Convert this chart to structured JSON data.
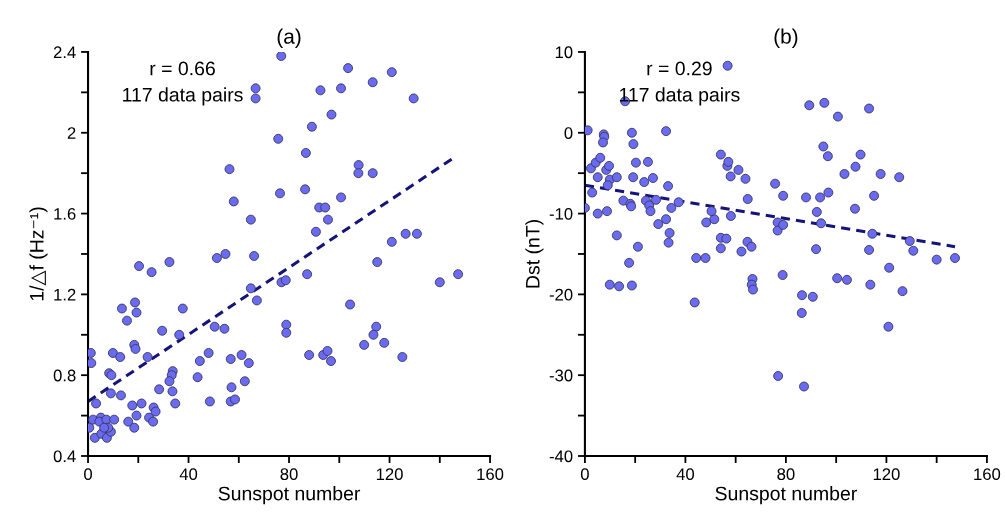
{
  "chart_data": [
    {
      "type": "scatter",
      "title": "(a)",
      "xlabel": "Sunspot number",
      "ylabel": "1/△f (Hz⁻¹)",
      "annotations": [
        "r = 0.66",
        "117 data pairs"
      ],
      "xlim": [
        0,
        160
      ],
      "ylim": [
        0.4,
        2.4
      ],
      "xticks": [
        0,
        {
          "value": 20,
          "label": null
        },
        40,
        {
          "value": 60,
          "label": null
        },
        80,
        {
          "value": 100,
          "label": null
        },
        120,
        {
          "value": 140,
          "label": null
        },
        160
      ],
      "yticks": [
        0.4,
        {
          "value": 0.6,
          "label": null
        },
        0.8,
        {
          "value": 1.0,
          "label": null
        },
        1.2,
        {
          "value": 1.4,
          "label": null
        },
        1.6,
        {
          "value": 1.8,
          "label": null
        },
        2,
        {
          "value": 2.2,
          "label": null
        },
        2.4
      ],
      "series": [
        {
          "color": "#6b6bf2",
          "marker": "circle",
          "x": [
            76.9,
            66.7,
            66.7,
            75.7,
            56.3,
            58.0,
            76.4,
            64.8,
            51.3,
            54.7,
            66.1,
            20.3,
            25.3,
            32.4,
            64.8,
            67.2,
            77.0,
            78.7,
            78.9,
            78.9,
            13.5,
            18.7,
            19.3,
            15.5,
            37.7,
            29.5,
            36.3,
            50.4,
            54.3,
            1.1,
            1.3,
            9.9,
            12.8,
            18.4,
            18.9,
            23.7,
            8.4,
            9.3,
            33.7,
            33.3,
            32.4,
            44.5,
            48.0,
            56.8,
            61.1,
            64.0,
            43.6,
            62.4,
            57.1,
            56.8,
            58.5,
            48.5,
            3.2,
            9.1,
            13.1,
            28.3,
            33.6,
            34.7,
            17.6,
            21.3,
            19.3,
            26.1,
            26.9,
            24.3,
            25.9,
            16.0,
            18.4,
            0.5,
            2.0,
            5.1,
            4.5,
            7.3,
            10.4,
            2.7,
            5.3,
            7.5,
            9.1,
            8.0,
            6.4,
            103.5,
            120.9,
            113.3,
            100.7,
            92.5,
            129.6,
            96.9,
            89.1,
            86.7,
            107.7,
            107.6,
            113.3,
            86.4,
            100.7,
            92.0,
            94.4,
            95.5,
            90.7,
            120.9,
            126.4,
            130.9,
            115.1,
            87.2,
            140.0,
            147.3,
            104.3,
            114.7,
            113.6,
            109.9,
            117.9,
            125.1,
            88.0,
            93.6,
            95.3,
            96.7
          ],
          "values": [
            2.38,
            2.22,
            2.17,
            1.97,
            1.82,
            1.66,
            1.7,
            1.57,
            1.38,
            1.4,
            1.39,
            1.34,
            1.31,
            1.36,
            1.23,
            1.17,
            1.26,
            1.27,
            1.05,
            1.01,
            1.13,
            1.16,
            1.11,
            1.07,
            1.13,
            1.02,
            1.0,
            1.04,
            1.03,
            0.91,
            0.86,
            0.91,
            0.89,
            0.95,
            0.93,
            0.89,
            0.81,
            0.8,
            0.82,
            0.8,
            0.77,
            0.87,
            0.91,
            0.88,
            0.9,
            0.86,
            0.79,
            0.77,
            0.74,
            0.67,
            0.68,
            0.67,
            0.66,
            0.71,
            0.7,
            0.73,
            0.72,
            0.66,
            0.65,
            0.66,
            0.6,
            0.64,
            0.62,
            0.59,
            0.57,
            0.57,
            0.54,
            0.54,
            0.58,
            0.59,
            0.57,
            0.58,
            0.58,
            0.49,
            0.51,
            0.49,
            0.52,
            0.54,
            0.54,
            2.32,
            2.3,
            2.25,
            2.22,
            2.21,
            2.17,
            2.09,
            2.03,
            1.9,
            1.84,
            1.8,
            1.8,
            1.72,
            1.68,
            1.63,
            1.63,
            1.57,
            1.51,
            1.46,
            1.5,
            1.5,
            1.36,
            1.3,
            1.26,
            1.3,
            1.15,
            1.04,
            1.0,
            0.95,
            0.96,
            0.89,
            0.9,
            0.9,
            0.92,
            0.87
          ]
        },
        {
          "type": "line",
          "color": "#14147a",
          "line_style": "dashed",
          "x": [
            0,
            146
          ],
          "values": [
            0.67,
            1.88
          ]
        }
      ]
    },
    {
      "type": "scatter",
      "title": "(b)",
      "xlabel": "Sunspot number",
      "ylabel": "Dst (nT)",
      "annotations": [
        "r = 0.29",
        "117 data pairs"
      ],
      "xlim": [
        0,
        160
      ],
      "ylim": [
        -40,
        10
      ],
      "xticks": [
        0,
        {
          "value": 20,
          "label": null
        },
        40,
        {
          "value": 60,
          "label": null
        },
        80,
        {
          "value": 100,
          "label": null
        },
        120,
        {
          "value": 140,
          "label": null
        },
        160
      ],
      "yticks": [
        -40,
        {
          "value": -35,
          "label": null
        },
        -30,
        {
          "value": -25,
          "label": null
        },
        -20,
        {
          "value": -15,
          "label": null
        },
        -10,
        {
          "value": -5,
          "label": null
        },
        0,
        {
          "value": 5,
          "label": null
        },
        10
      ],
      "series": [
        {
          "color": "#6b6bf2",
          "marker": "circle",
          "x": [
            56.8,
            16.0,
            1.1,
            7.5,
            7.7,
            7.2,
            18.7,
            19.3,
            32.3,
            2.4,
            4.3,
            6.1,
            5.1,
            8.5,
            9.6,
            9.9,
            12.7,
            9.1,
            2.9,
            0.0,
            5.1,
            8.8,
            15.3,
            18.1,
            18.4,
            20.3,
            25.1,
            19.2,
            23.6,
            27.1,
            33.1,
            24.3,
            25.6,
            26.1,
            28.3,
            34.4,
            37.3,
            32.3,
            29.2,
            33.7,
            33.3,
            12.7,
            21.1,
            17.6,
            9.9,
            13.6,
            18.7,
            43.7,
            44.3,
            48.0,
            48.3,
            51.5,
            50.4,
            54.1,
            56.7,
            57.1,
            58.0,
            61.1,
            63.9,
            64.8,
            58.1,
            54.1,
            56.3,
            54.1,
            62.3,
            64.7,
            66.3,
            66.7,
            66.4,
            66.9,
            75.7,
            78.9,
            76.7,
            76.7,
            78.9,
            78.7,
            76.9,
            89.3,
            95.3,
            100.7,
            113.1,
            94.9,
            96.7,
            109.7,
            107.7,
            103.3,
            117.7,
            125.1,
            88.0,
            93.6,
            96.9,
            115.1,
            92.3,
            107.5,
            94.0,
            114.4,
            129.3,
            130.7,
            140.0,
            147.3,
            92.0,
            113.1,
            121.1,
            100.4,
            104.3,
            113.6,
            126.4,
            86.4,
            90.7,
            86.3,
            120.8,
            87.2
          ],
          "values": [
            8.3,
            3.9,
            0.3,
            -0.2,
            -0.5,
            -1.2,
            0.0,
            -1.4,
            0.2,
            -4.4,
            -3.7,
            -3.1,
            -5.5,
            -4.6,
            -4.1,
            -5.8,
            -5.5,
            -6.5,
            -7.4,
            -9.3,
            -10.0,
            -9.7,
            -8.4,
            -8.8,
            -9.1,
            -3.7,
            -3.6,
            -5.5,
            -6.1,
            -5.6,
            -6.6,
            -8.4,
            -9.0,
            -9.7,
            -8.3,
            -9.3,
            -8.6,
            -10.7,
            -11.3,
            -12.4,
            -13.6,
            -12.7,
            -14.1,
            -16.1,
            -18.8,
            -19.0,
            -18.9,
            -21.0,
            -15.5,
            -15.5,
            -11.1,
            -10.7,
            -9.7,
            -2.7,
            -4.1,
            -3.6,
            -5.4,
            -4.6,
            -5.7,
            -8.2,
            -10.3,
            -13.0,
            -13.1,
            -14.3,
            -14.7,
            -13.5,
            -14.1,
            -18.1,
            -18.8,
            -19.4,
            -6.3,
            -7.8,
            -11.1,
            -12.1,
            -11.4,
            -17.6,
            -30.1,
            3.4,
            3.7,
            2.0,
            3.0,
            -1.7,
            -2.9,
            -2.7,
            -4.2,
            -5.1,
            -5.1,
            -5.5,
            -8.0,
            -8.0,
            -7.4,
            -7.8,
            -9.8,
            -9.4,
            -11.2,
            -12.5,
            -13.4,
            -14.6,
            -15.7,
            -15.5,
            -14.4,
            -14.5,
            -16.7,
            -18.0,
            -18.2,
            -18.8,
            -19.6,
            -20.1,
            -20.3,
            -22.3,
            -24.0,
            -31.4
          ]
        },
        {
          "type": "line",
          "color": "#14147a",
          "line_style": "dashed",
          "x": [
            0,
            147.3
          ],
          "values": [
            -6.5,
            -14.1
          ]
        }
      ]
    }
  ]
}
